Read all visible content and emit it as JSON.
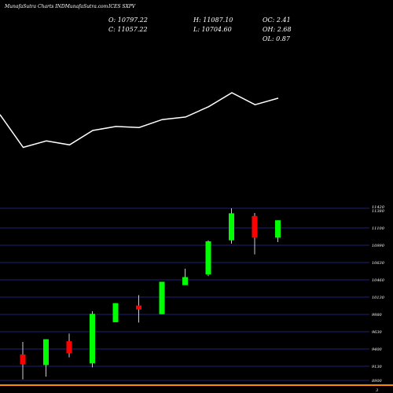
{
  "header": {
    "source": "MunafaSutra Charts INDMunafaSutra.com",
    "ticker": "ICES SXPV",
    "open": "O: 10797.22",
    "close": "C: 11057.22",
    "high": "H: 11087.10",
    "low": "L: 10704.60",
    "oc": "OC: 2.41",
    "oh": "OH: 2.68",
    "ol": "OL: 0.87"
  },
  "colors": {
    "background": "#000000",
    "up": "#00ff00",
    "down": "#ff0000",
    "wick": "#ffffff",
    "grid": "#2a2a9a",
    "line": "#ffffff",
    "baseline": "#ff8c00"
  },
  "chart_data": {
    "type": "candlestick",
    "price_axis": {
      "ticks": [
        "11420",
        "11380",
        "11100",
        "10990",
        "10630",
        "10460",
        "10130",
        "9980",
        "9630",
        "9400",
        "9130",
        "8900"
      ],
      "bottom_label": "3"
    },
    "candles": [
      {
        "open": 9288,
        "high": 9476,
        "low": 8915,
        "close": 9140,
        "dir": "down"
      },
      {
        "open": 9130,
        "high": 9516,
        "low": 8956,
        "close": 9516,
        "dir": "up"
      },
      {
        "open": 9486,
        "high": 9601,
        "low": 9246,
        "close": 9308,
        "dir": "down"
      },
      {
        "open": 9155,
        "high": 9936,
        "low": 9096,
        "close": 9896,
        "dir": "up"
      },
      {
        "open": 9771,
        "high": 10056,
        "low": 9771,
        "close": 10056,
        "dir": "up"
      },
      {
        "open": 10021,
        "high": 10176,
        "low": 9766,
        "close": 9961,
        "dir": "down"
      },
      {
        "open": 9891,
        "high": 10376,
        "low": 9891,
        "close": 10376,
        "dir": "up"
      },
      {
        "open": 10326,
        "high": 10571,
        "low": 10326,
        "close": 10446,
        "dir": "up"
      },
      {
        "open": 10486,
        "high": 10996,
        "low": 10461,
        "close": 10981,
        "dir": "up"
      },
      {
        "open": 10996,
        "high": 11475,
        "low": 10946,
        "close": 11400,
        "dir": "up"
      },
      {
        "open": 11360,
        "high": 11405,
        "low": 10785,
        "close": 11036,
        "dir": "down"
      },
      {
        "open": 11036,
        "high": 11296,
        "low": 10971,
        "close": 11296,
        "dir": "up"
      }
    ],
    "line_series": [
      {
        "x": 0,
        "y": 0.7
      },
      {
        "x": 1,
        "y": 0.04
      },
      {
        "x": 2,
        "y": 0.17
      },
      {
        "x": 3,
        "y": 0.09
      },
      {
        "x": 4,
        "y": 0.38
      },
      {
        "x": 5,
        "y": 0.46
      },
      {
        "x": 6,
        "y": 0.44
      },
      {
        "x": 7,
        "y": 0.6
      },
      {
        "x": 8,
        "y": 0.65
      },
      {
        "x": 9,
        "y": 0.86
      },
      {
        "x": 10,
        "y": 1.14
      },
      {
        "x": 11,
        "y": 0.9
      },
      {
        "x": 12,
        "y": 1.03
      }
    ]
  }
}
